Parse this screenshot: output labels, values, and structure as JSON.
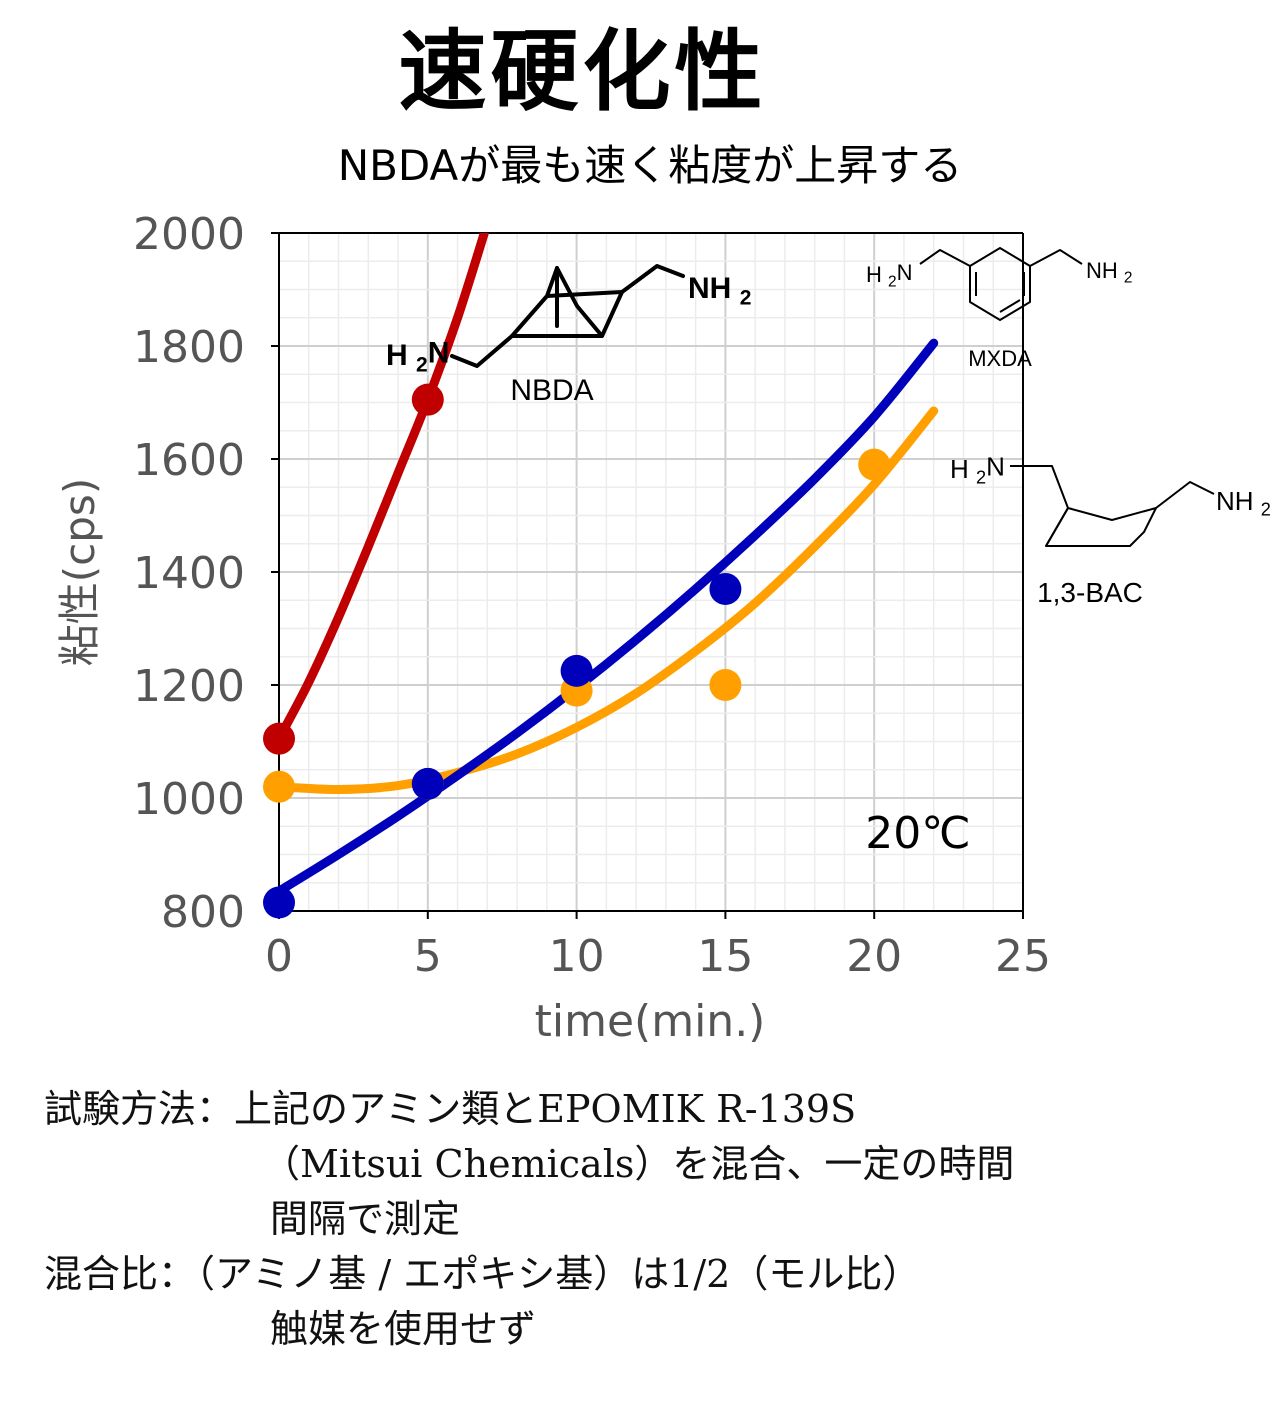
{
  "title": "速硬化性",
  "subtitle": "NBDAが最も速く粘度が上昇する",
  "chart_data": {
    "type": "scatter",
    "xlabel": "time(min.)",
    "ylabel": "粘性(cps)",
    "xlim": [
      0,
      25
    ],
    "ylim": [
      800,
      2000
    ],
    "xticks": [
      0,
      5,
      10,
      15,
      20,
      25
    ],
    "yticks": [
      800,
      1000,
      1200,
      1400,
      1600,
      1800,
      2000
    ],
    "grid": true,
    "annotation": "20℃",
    "series": [
      {
        "name": "NBDA",
        "color": "#c00000",
        "points": [
          [
            0,
            1105
          ],
          [
            5,
            1705
          ]
        ],
        "curve": [
          [
            0,
            1105
          ],
          [
            1,
            1205
          ],
          [
            2,
            1320
          ],
          [
            3,
            1445
          ],
          [
            4,
            1575
          ],
          [
            5,
            1705
          ],
          [
            6,
            1850
          ],
          [
            6.9,
            2000
          ]
        ]
      },
      {
        "name": "MXDA",
        "color": "#0000bb",
        "points": [
          [
            0,
            815
          ],
          [
            5,
            1025
          ],
          [
            10,
            1225
          ],
          [
            15,
            1370
          ]
        ],
        "curve": [
          [
            0,
            835
          ],
          [
            2,
            900
          ],
          [
            4,
            968
          ],
          [
            6,
            1040
          ],
          [
            8,
            1115
          ],
          [
            10,
            1195
          ],
          [
            12,
            1280
          ],
          [
            14,
            1370
          ],
          [
            16,
            1465
          ],
          [
            18,
            1565
          ],
          [
            20,
            1675
          ],
          [
            22,
            1805
          ]
        ]
      },
      {
        "name": "1,3-BAC",
        "color": "#ffa000",
        "points": [
          [
            0,
            1020
          ],
          [
            5,
            1025
          ],
          [
            10,
            1190
          ],
          [
            15,
            1200
          ],
          [
            20,
            1590
          ]
        ],
        "curve": [
          [
            0,
            1020
          ],
          [
            2,
            1015
          ],
          [
            4,
            1022
          ],
          [
            6,
            1045
          ],
          [
            8,
            1078
          ],
          [
            10,
            1125
          ],
          [
            12,
            1185
          ],
          [
            14,
            1260
          ],
          [
            16,
            1345
          ],
          [
            18,
            1445
          ],
          [
            20,
            1555
          ],
          [
            22,
            1685
          ]
        ]
      }
    ],
    "structure_labels": {
      "nbda": "NBDA",
      "mxda": "MXDA",
      "bac": "1,3-BAC",
      "h2n": "H2N",
      "nh2": "NH2"
    }
  },
  "test_method": {
    "line1": "試験方法：上記のアミン類とEPOMIK R-139S",
    "line2": "（Mitsui Chemicals）を混合、一定の時間",
    "line3": "間隔で測定",
    "line4": "混合比：（アミノ基 / エポキシ基）は1/2（モル比）",
    "line5": "触媒を使用せず"
  }
}
